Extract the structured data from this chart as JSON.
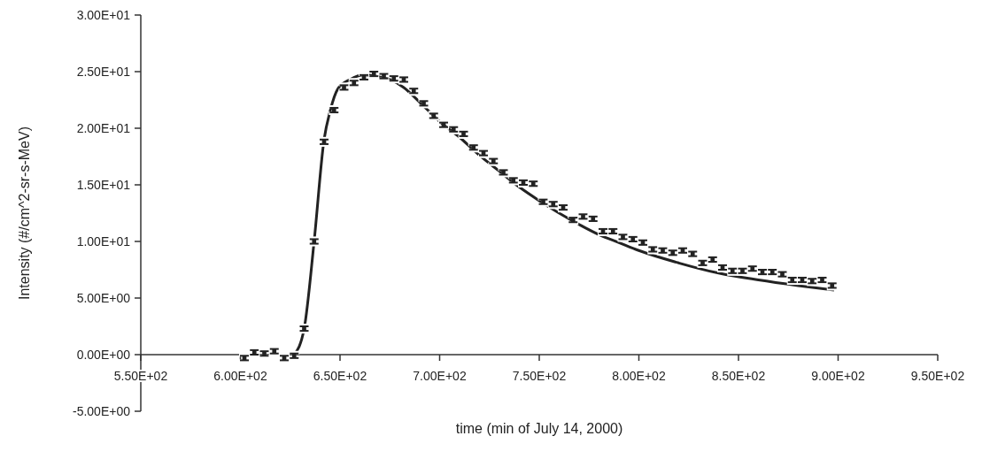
{
  "chart_data": {
    "type": "scatter",
    "xlabel": "time (min of July 14, 2000)",
    "ylabel": "Intensity (#/cm^2-sr-s-MeV)",
    "xlim": [
      550,
      950
    ],
    "ylim": [
      -5,
      30
    ],
    "xticks": [
      {
        "value": 550,
        "label": "5.50E+02"
      },
      {
        "value": 600,
        "label": "6.00E+02"
      },
      {
        "value": 650,
        "label": "6.50E+02"
      },
      {
        "value": 700,
        "label": "7.00E+02"
      },
      {
        "value": 750,
        "label": "7.50E+02"
      },
      {
        "value": 800,
        "label": "8.00E+02"
      },
      {
        "value": 850,
        "label": "8.50E+02"
      },
      {
        "value": 900,
        "label": "9.00E+02"
      },
      {
        "value": 950,
        "label": "9.50E+02"
      }
    ],
    "yticks": [
      {
        "value": -5,
        "label": "-5.00E+00"
      },
      {
        "value": 0,
        "label": "0.00E+00"
      },
      {
        "value": 5,
        "label": "5.00E+00"
      },
      {
        "value": 10,
        "label": "1.00E+01"
      },
      {
        "value": 15,
        "label": "1.50E+01"
      },
      {
        "value": 20,
        "label": "2.00E+01"
      },
      {
        "value": 25,
        "label": "2.50E+01"
      },
      {
        "value": 30,
        "label": "3.00E+01"
      }
    ],
    "grid": false,
    "series": [
      {
        "color": "#222222",
        "marker": "square",
        "x": [
          602,
          607,
          612,
          617,
          622,
          627,
          632,
          637,
          642,
          647,
          652,
          657,
          662,
          667,
          672,
          677,
          682,
          687,
          692,
          697,
          702,
          707,
          712,
          717,
          722,
          727,
          732,
          737,
          742,
          747,
          752,
          757,
          762,
          767,
          772,
          777,
          782,
          787,
          792,
          797,
          802,
          807,
          812,
          817,
          822,
          827,
          832,
          837,
          842,
          847,
          852,
          857,
          862,
          867,
          872,
          877,
          882,
          887,
          892,
          897
        ],
        "values": [
          -0.3,
          0.2,
          0.1,
          0.3,
          -0.3,
          -0.1,
          2.3,
          10.0,
          18.8,
          21.6,
          23.6,
          24.0,
          24.5,
          24.8,
          24.6,
          24.4,
          24.3,
          23.3,
          22.2,
          21.1,
          20.3,
          19.9,
          19.5,
          18.3,
          17.8,
          17.1,
          16.1,
          15.4,
          15.2,
          15.1,
          13.5,
          13.3,
          13.0,
          11.9,
          12.2,
          12.0,
          10.9,
          10.9,
          10.4,
          10.2,
          9.9,
          9.3,
          9.2,
          9.0,
          9.2,
          8.9,
          8.1,
          8.4,
          7.7,
          7.4,
          7.4,
          7.6,
          7.3,
          7.3,
          7.1,
          6.6,
          6.6,
          6.5,
          6.6,
          6.1
        ],
        "errors": [
          0.2,
          0.2,
          0.2,
          0.2,
          0.2,
          0.2,
          0.2,
          0.2,
          0.2,
          0.2,
          0.2,
          0.2,
          0.2,
          0.2,
          0.2,
          0.2,
          0.2,
          0.2,
          0.2,
          0.2,
          0.2,
          0.2,
          0.2,
          0.2,
          0.2,
          0.2,
          0.2,
          0.2,
          0.2,
          0.2,
          0.2,
          0.2,
          0.2,
          0.2,
          0.2,
          0.2,
          0.2,
          0.2,
          0.2,
          0.2,
          0.2,
          0.2,
          0.2,
          0.2,
          0.2,
          0.2,
          0.2,
          0.2,
          0.2,
          0.2,
          0.2,
          0.2,
          0.2,
          0.2,
          0.2,
          0.2,
          0.2,
          0.2,
          0.2,
          0.2
        ]
      },
      {
        "type": "line",
        "color": "#222222",
        "marker": "none",
        "line_style": "solid",
        "x": [
          627,
          632,
          637,
          642,
          645,
          649,
          655,
          662,
          668,
          675,
          682,
          690,
          700,
          710,
          720,
          730,
          740,
          750,
          760,
          770,
          780,
          790,
          800,
          820,
          840,
          860,
          880,
          898
        ],
        "values": [
          0,
          2.3,
          10,
          19,
          21.5,
          23.5,
          24.3,
          24.7,
          24.6,
          24.3,
          23.6,
          22.3,
          20.6,
          19.2,
          17.6,
          16.2,
          14.8,
          13.6,
          12.5,
          11.5,
          10.6,
          9.9,
          9.2,
          8.1,
          7.2,
          6.6,
          6.1,
          5.7
        ]
      }
    ]
  }
}
